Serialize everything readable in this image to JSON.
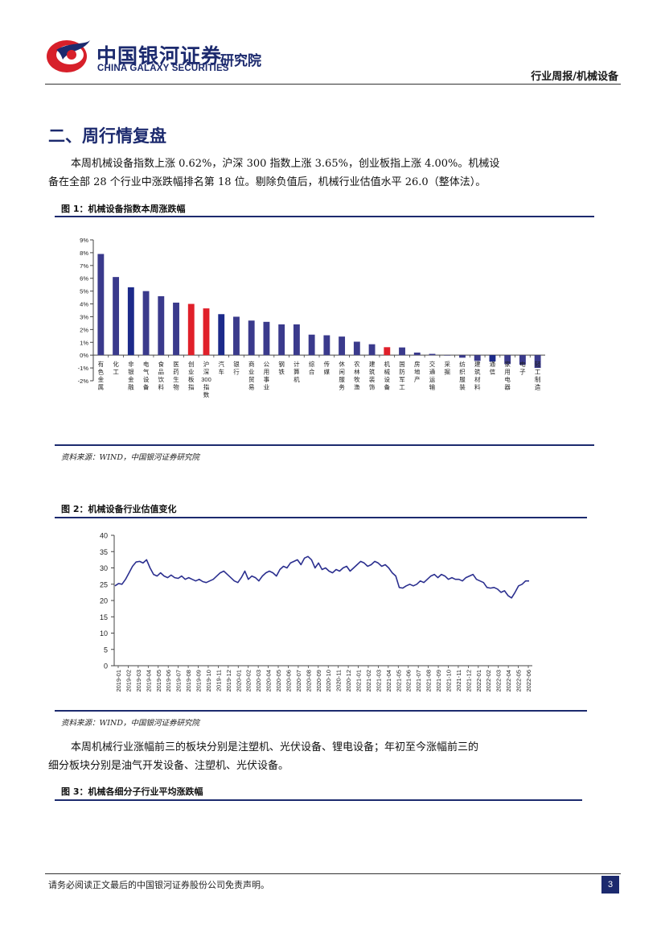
{
  "header": {
    "company_cn": "中国银河证券",
    "company_en": "CHINA GALAXY SECURITIES",
    "institute": "研究院",
    "report_type": "行业周报/机械设备",
    "brand_color": "#1c2a6e",
    "accent_color": "#d7202a"
  },
  "section": {
    "title": "二、周行情复盘",
    "para1_line1": "本周机械设备指数上涨 0.62%，沪深 300 指数上涨 3.65%，创业板指上涨 4.00%。机械设",
    "para1_line2": "备在全部 28 个行业中涨跌幅排名第 18 位。剔除负值后，机械行业估值水平 26.0（整体法）。",
    "para2_line1": "本周机械行业涨幅前三的板块分别是注塑机、光伏设备、锂电设备；年初至今涨幅前三的",
    "para2_line2": "细分板块分别是油气开发设备、注塑机、光伏设备。"
  },
  "figures": {
    "fig1": {
      "title": "图 1：机械设备指数本周涨跌幅",
      "source": "资料来源：WIND，中国银河证券研究院"
    },
    "fig2": {
      "title": "图 2：机械设备行业估值变化",
      "source": "资料来源：WIND，中国银河证券研究院"
    },
    "fig3": {
      "title": "图 3：机械各细分子行业平均涨跌幅"
    }
  },
  "footer": {
    "disclaimer": "请务必阅读正文最后的中国银河证券股份公司免责声明。",
    "page_number": "3"
  },
  "chart_data": [
    {
      "type": "bar",
      "categories": [
        "有色金属",
        "化工",
        "非银金融",
        "电气设备",
        "食品饮料",
        "医药生物",
        "创业板指",
        "沪深300指数",
        "汽车",
        "银行",
        "商业贸易",
        "公用事业",
        "钢铁",
        "计算机",
        "综合",
        "传媒",
        "休闲服务",
        "农林牧渔",
        "建筑装饰",
        "机械设备",
        "国防军工",
        "房地产",
        "交通运输",
        "采掘",
        "纺织服装",
        "建筑材料",
        "通信",
        "家用电器",
        "电子",
        "轻工制造"
      ],
      "values": [
        7.9,
        6.1,
        5.3,
        5.0,
        4.6,
        4.1,
        4.0,
        3.65,
        3.2,
        3.0,
        2.7,
        2.6,
        2.4,
        2.4,
        1.6,
        1.55,
        1.45,
        1.05,
        0.85,
        0.62,
        0.6,
        0.2,
        0.1,
        0.0,
        -0.2,
        -0.45,
        -0.5,
        -0.7,
        -0.75,
        -1.0
      ],
      "colors": [
        "#3a3a8c",
        "#3a3a8c",
        "#1c2a8a",
        "#3a3a8c",
        "#3a3a8c",
        "#3a3a8c",
        "#e0202a",
        "#e0202a",
        "#1c2a8a",
        "#3a3a8c",
        "#3a3a8c",
        "#3a3a8c",
        "#3a3a8c",
        "#3a3a8c",
        "#3a3a8c",
        "#3a3a8c",
        "#3a3a8c",
        "#3a3a8c",
        "#3a3a8c",
        "#e0202a",
        "#3a3a8c",
        "#3a3a8c",
        "#3a3a8c",
        "#3a3a8c",
        "#3a3a8c",
        "#3a3a8c",
        "#1c2a8a",
        "#3a3a8c",
        "#3a3a8c",
        "#3a3a8c"
      ],
      "yticks": [
        "9%",
        "8%",
        "7%",
        "6%",
        "5%",
        "4%",
        "3%",
        "2%",
        "1%",
        "0%",
        "-1%",
        "-2%"
      ],
      "ylim": [
        -2,
        9
      ],
      "grid": false
    },
    {
      "type": "line",
      "x_ticks": [
        "2019-01",
        "2019-02",
        "2019-03",
        "2019-04",
        "2019-05",
        "2019-06",
        "2019-07",
        "2019-08",
        "2019-09",
        "2019-10",
        "2019-11",
        "2019-12",
        "2020-01",
        "2020-02",
        "2020-03",
        "2020-04",
        "2020-05",
        "2020-06",
        "2020-07",
        "2020-08",
        "2020-09",
        "2020-10",
        "2020-11",
        "2020-12",
        "2021-01",
        "2021-02",
        "2021-03",
        "2021-04",
        "2021-05",
        "2021-06",
        "2021-07",
        "2021-08",
        "2021-09",
        "2021-10",
        "2021-11",
        "2021-12",
        "2022-01",
        "2022-02",
        "2022-03",
        "2022-04",
        "2022-05",
        "2022-06"
      ],
      "yticks": [
        "40",
        "35",
        "30",
        "25",
        "20",
        "15",
        "10",
        "5",
        "0"
      ],
      "ylim": [
        0,
        40
      ],
      "series": [
        {
          "values": [
            24.5,
            25.2,
            25.0,
            26.5,
            28.5,
            30.5,
            31.8,
            32.0,
            31.5,
            32.5,
            30.0,
            28.0,
            27.5,
            28.5,
            27.5,
            27.0,
            27.8,
            27.0,
            26.8,
            27.5,
            26.5,
            27.0,
            26.5,
            26.0,
            26.5,
            25.8,
            25.5,
            26.0,
            26.5,
            27.5,
            28.5,
            29.0,
            28.0,
            27.0,
            26.0,
            25.5,
            27.0,
            29.0,
            26.5,
            27.5,
            27.0,
            26.0,
            27.5,
            28.5,
            29.0,
            28.5,
            27.5,
            29.5,
            30.5,
            30.0,
            31.5,
            32.0,
            32.5,
            31.0,
            33.0,
            33.5,
            32.5,
            30.0,
            31.5,
            29.5,
            30.0,
            29.0,
            28.5,
            29.5,
            29.0,
            30.0,
            30.5,
            29.0,
            30.0,
            31.0,
            32.0,
            31.5,
            30.5,
            31.0,
            32.0,
            31.5,
            30.5,
            31.0,
            30.0,
            28.5,
            27.5,
            24.0,
            23.8,
            24.5,
            25.0,
            24.5,
            25.0,
            26.0,
            25.5,
            26.5,
            27.5,
            28.0,
            27.0,
            28.0,
            27.5,
            26.5,
            27.0,
            26.5,
            26.5,
            26.0,
            27.0,
            27.5,
            28.0,
            26.5,
            26.0,
            25.5,
            24.0,
            23.8,
            24.0,
            23.5,
            22.5,
            23.0,
            21.5,
            20.8,
            22.5,
            24.5,
            25.0,
            26.0,
            26.0
          ]
        }
      ],
      "grid": false
    }
  ]
}
